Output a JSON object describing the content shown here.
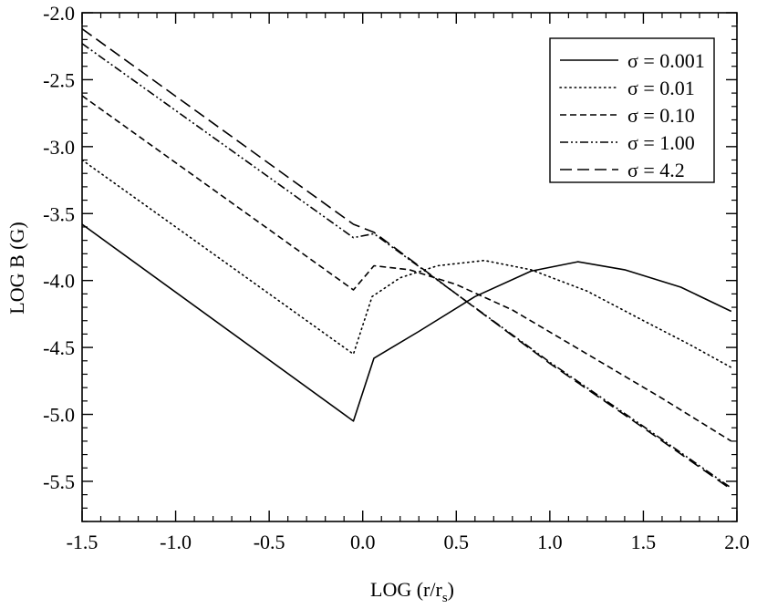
{
  "chart_data": {
    "type": "line",
    "xlabel": "LOG (r/r",
    "xlabel_sub": "s",
    "xlabel_close": ")",
    "ylabel": "LOG B (G)",
    "xlim": [
      -1.5,
      2.0
    ],
    "ylim": [
      -5.8,
      -2.0
    ],
    "x_ticks": [
      -1.5,
      -1.0,
      -0.5,
      0.0,
      0.5,
      1.0,
      1.5,
      2.0
    ],
    "x_tick_labels": [
      "-1.5",
      "-1.0",
      "-0.5",
      "0.0",
      "0.5",
      "1.0",
      "1.5",
      "2.0"
    ],
    "y_ticks": [
      -2.0,
      -2.5,
      -3.0,
      -3.5,
      -4.0,
      -4.5,
      -5.0,
      -5.5
    ],
    "y_tick_labels": [
      "-2.0",
      "-2.5",
      "-3.0",
      "-3.5",
      "-4.0",
      "-4.5",
      "-5.0",
      "-5.5"
    ],
    "grid": false,
    "legend_position": "top-right",
    "series": [
      {
        "name": "σ = 0.001",
        "dash": "solid",
        "points": [
          [
            -1.5,
            -3.58
          ],
          [
            -0.05,
            -5.05
          ],
          [
            0.06,
            -4.58
          ],
          [
            0.3,
            -4.38
          ],
          [
            0.6,
            -4.12
          ],
          [
            0.9,
            -3.93
          ],
          [
            1.15,
            -3.86
          ],
          [
            1.4,
            -3.92
          ],
          [
            1.7,
            -4.05
          ],
          [
            1.97,
            -4.23
          ]
        ]
      },
      {
        "name": "σ = 0.01",
        "dash": "dotted",
        "points": [
          [
            -1.5,
            -3.1
          ],
          [
            -0.05,
            -4.55
          ],
          [
            0.05,
            -4.12
          ],
          [
            0.2,
            -3.98
          ],
          [
            0.4,
            -3.89
          ],
          [
            0.65,
            -3.85
          ],
          [
            0.9,
            -3.92
          ],
          [
            1.2,
            -4.08
          ],
          [
            1.5,
            -4.3
          ],
          [
            1.75,
            -4.48
          ],
          [
            1.97,
            -4.65
          ]
        ]
      },
      {
        "name": "σ = 0.10",
        "dash": "dashed",
        "points": [
          [
            -1.5,
            -2.62
          ],
          [
            -0.05,
            -4.07
          ],
          [
            0.06,
            -3.89
          ],
          [
            0.25,
            -3.92
          ],
          [
            0.5,
            -4.03
          ],
          [
            0.8,
            -4.22
          ],
          [
            1.2,
            -4.55
          ],
          [
            1.6,
            -4.88
          ],
          [
            1.97,
            -5.2
          ]
        ]
      },
      {
        "name": "σ = 1.00",
        "dash": "dashdotdot",
        "points": [
          [
            -1.5,
            -2.23
          ],
          [
            -0.05,
            -3.68
          ],
          [
            0.06,
            -3.65
          ],
          [
            0.5,
            -4.1
          ],
          [
            1.0,
            -4.61
          ],
          [
            1.5,
            -5.09
          ],
          [
            1.97,
            -5.55
          ]
        ]
      },
      {
        "name": "σ = 4.2",
        "dash": "longdash",
        "points": [
          [
            -1.5,
            -2.12
          ],
          [
            -0.05,
            -3.58
          ],
          [
            0.06,
            -3.64
          ],
          [
            0.5,
            -4.1
          ],
          [
            1.0,
            -4.62
          ],
          [
            1.5,
            -5.1
          ],
          [
            1.97,
            -5.56
          ]
        ]
      }
    ]
  }
}
